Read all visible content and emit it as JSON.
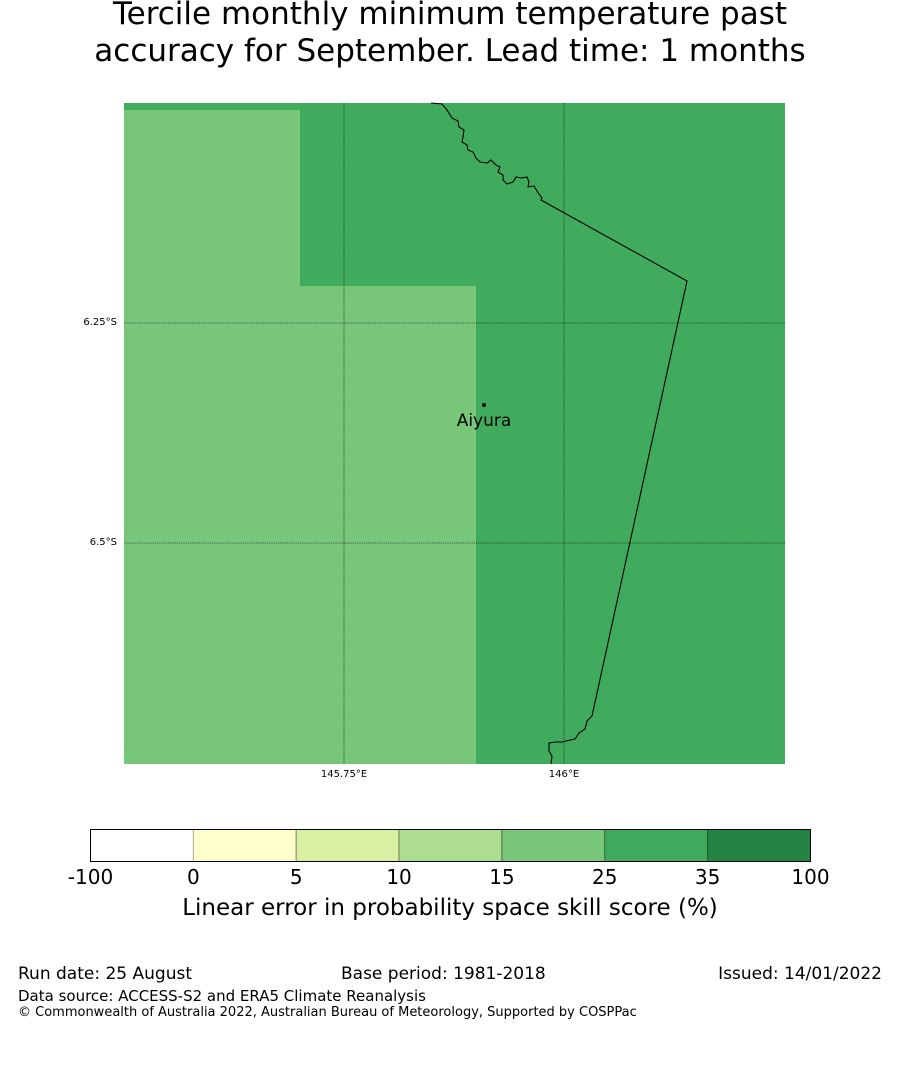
{
  "title": {
    "line1": "Tercile monthly minimum temperature past",
    "line2": "accuracy for September. Lead time: 1 months"
  },
  "map": {
    "lat_ticks": [
      "6.25°S",
      "6.5°S"
    ],
    "lon_ticks": [
      "145.75°E",
      "146°E"
    ],
    "place": {
      "name": "Aiyura"
    },
    "region_colors": {
      "score_15_25": "#78c67a",
      "score_25_35": "#41ab5d"
    }
  },
  "colorbar": {
    "tick_labels": [
      "-100",
      "0",
      "5",
      "10",
      "15",
      "25",
      "35",
      "100"
    ],
    "colors": [
      "#ffffff",
      "#ffffcc",
      "#d9f0a3",
      "#addd8e",
      "#78c67a",
      "#41ab5d",
      "#238443"
    ],
    "title": "Linear error in probability space skill score (%)"
  },
  "footer": {
    "run_date": "Run date: 25 August",
    "base_period": "Base period: 1981-2018",
    "issued": "Issued: 14/01/2022",
    "data_source": "Data source: ACCESS-S2 and ERA5 Climate Reanalysis",
    "copyright": "© Commonwealth of Australia 2022, Australian Bureau of Meteorology, Supported by COSPPac"
  }
}
